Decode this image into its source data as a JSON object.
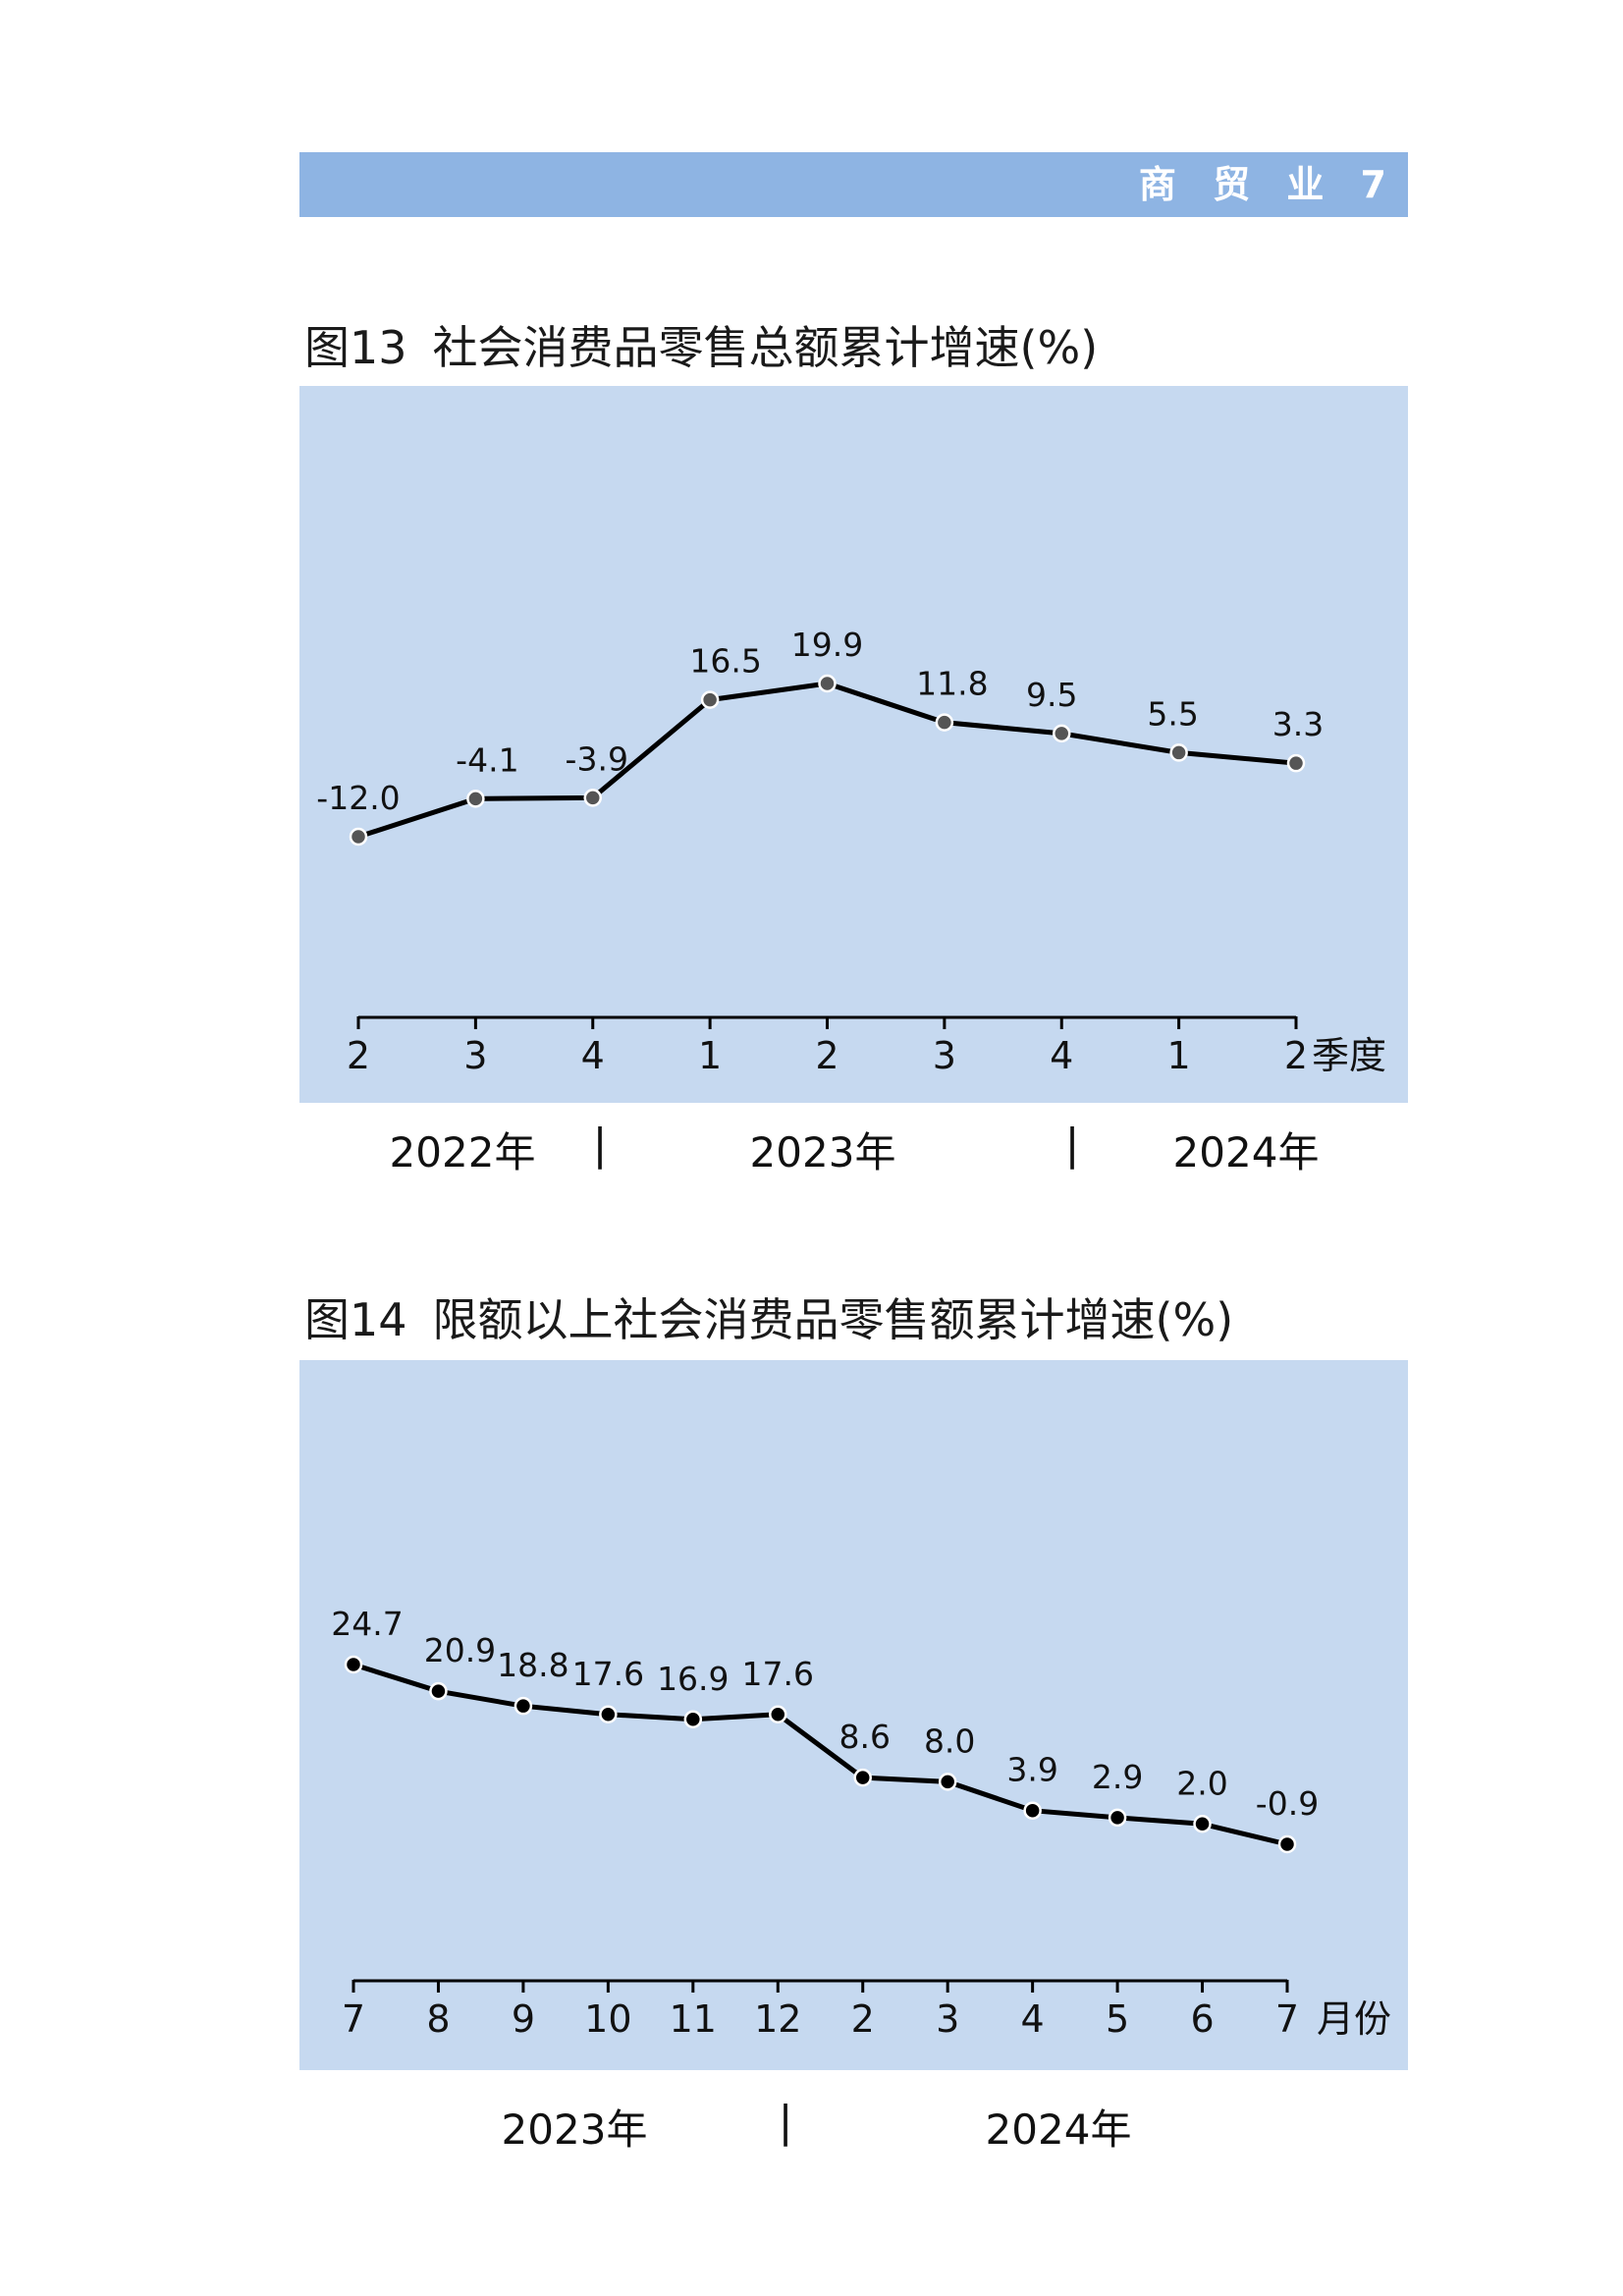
{
  "header": {
    "section_label": "商 贸 业 7"
  },
  "figures": [
    {
      "number": "图13",
      "title": "社会消费品零售总额累计增速(%)",
      "unit_suffix": "季度",
      "years": [
        "2022年",
        "2023年",
        "2024年"
      ]
    },
    {
      "number": "图14",
      "title": "限额以上社会消费品零售额累计增速(%)",
      "unit_suffix": "月份",
      "years": [
        "2023年",
        "2024年"
      ]
    }
  ],
  "chart_data": [
    {
      "type": "line",
      "title": "社会消费品零售总额累计增速(%)",
      "x_unit": "季度",
      "categories": [
        "2",
        "3",
        "4",
        "1",
        "2",
        "3",
        "4",
        "1",
        "2"
      ],
      "year_groups": [
        "2022年",
        "2023年",
        "2024年"
      ],
      "values": [
        -12.0,
        -4.1,
        -3.9,
        16.5,
        19.9,
        11.8,
        9.5,
        5.5,
        3.3
      ],
      "labels": [
        "-12.0",
        "-4.1",
        "-3.9",
        "16.5",
        "19.9",
        "11.8",
        "9.5",
        "5.5",
        "3.3"
      ],
      "grid": false,
      "marker_color": "#555555",
      "line_color": "#000000"
    },
    {
      "type": "line",
      "title": "限额以上社会消费品零售额累计增速(%)",
      "x_unit": "月份",
      "categories": [
        "7",
        "8",
        "9",
        "10",
        "11",
        "12",
        "2",
        "3",
        "4",
        "5",
        "6",
        "7"
      ],
      "year_groups": [
        "2023年",
        "2024年"
      ],
      "values": [
        24.7,
        20.9,
        18.8,
        17.6,
        16.9,
        17.6,
        8.6,
        8.0,
        3.9,
        2.9,
        2.0,
        -0.9
      ],
      "labels": [
        "24.7",
        "20.9",
        "18.8",
        "17.6",
        "16.9",
        "17.6",
        "8.6",
        "8.0",
        "3.9",
        "2.9",
        "2.0",
        "-0.9"
      ],
      "grid": false,
      "marker_color": "#000000",
      "line_color": "#000000"
    }
  ]
}
